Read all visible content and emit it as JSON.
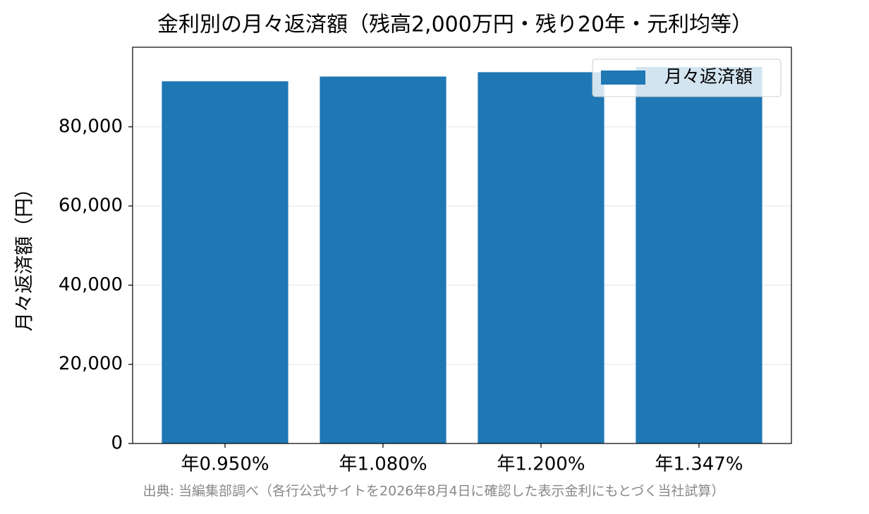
{
  "chart_data": {
    "type": "bar",
    "title": "金利別の月々返済額（残高2,000万円・残り20年・元利均等）",
    "ylabel": "月々返済額（円）",
    "source": "出典: 当編集部調べ（各行公式サイトを2026年8月4日に確認した表示金利にもとづく当社試算）",
    "categories": [
      "年0.950%",
      "年1.080%",
      "年1.200%",
      "年1.347%"
    ],
    "series": [
      {
        "name": "月々返済額",
        "color": "#1f77b4",
        "values": [
          91500,
          92700,
          93800,
          95100
        ]
      }
    ],
    "ylim": [
      0,
      100100
    ],
    "yticks": [
      0,
      {
        "value": 20000,
        "label": "20,000"
      },
      {
        "value": 40000,
        "label": "40,000"
      },
      {
        "value": 60000,
        "label": "60,000"
      },
      {
        "value": 80000,
        "label": "80,000"
      }
    ],
    "grid": true,
    "legend": "upper-right"
  }
}
